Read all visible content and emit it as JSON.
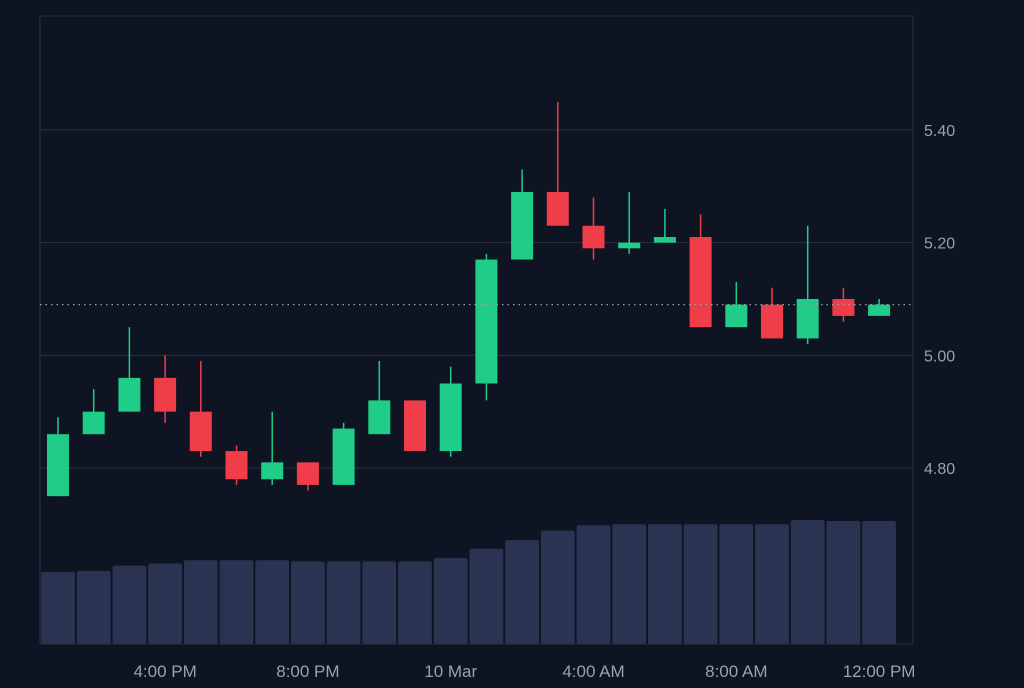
{
  "chart_data": {
    "type": "candlestick",
    "title": "",
    "xlabel": "",
    "ylabel": "",
    "ylim": [
      4.7,
      5.6
    ],
    "y_ticks": [
      4.8,
      5.0,
      5.2,
      5.4
    ],
    "y_tick_labels": [
      "4.80",
      "5.00",
      "5.20",
      "5.40"
    ],
    "x_tick_labels": [
      "4:00 PM",
      "8:00 PM",
      "10 Mar",
      "4:00 AM",
      "8:00 AM",
      "12:00 PM"
    ],
    "x_tick_candle_index": [
      3,
      7,
      11,
      15,
      19,
      23
    ],
    "last_price": 5.09,
    "grid": true,
    "colors": {
      "background": "#0e1421",
      "up": "#1fcc88",
      "down": "#ef3e4a",
      "grid": "#2a3142",
      "axis_text": "#9aa1ad",
      "volume": "#2b3353",
      "price_line": "#9aa1ad"
    },
    "candles": [
      {
        "open": 4.75,
        "high": 4.89,
        "low": 4.75,
        "close": 4.86
      },
      {
        "open": 4.86,
        "high": 4.94,
        "low": 4.86,
        "close": 4.9
      },
      {
        "open": 4.9,
        "high": 5.05,
        "low": 4.9,
        "close": 4.96
      },
      {
        "open": 4.96,
        "high": 5.0,
        "low": 4.88,
        "close": 4.9
      },
      {
        "open": 4.9,
        "high": 4.99,
        "low": 4.82,
        "close": 4.83
      },
      {
        "open": 4.83,
        "high": 4.84,
        "low": 4.77,
        "close": 4.78
      },
      {
        "open": 4.78,
        "high": 4.9,
        "low": 4.77,
        "close": 4.81
      },
      {
        "open": 4.81,
        "high": 4.81,
        "low": 4.76,
        "close": 4.77
      },
      {
        "open": 4.77,
        "high": 4.88,
        "low": 4.77,
        "close": 4.87
      },
      {
        "open": 4.86,
        "high": 4.99,
        "low": 4.86,
        "close": 4.92
      },
      {
        "open": 4.92,
        "high": 4.92,
        "low": 4.83,
        "close": 4.83
      },
      {
        "open": 4.83,
        "high": 4.98,
        "low": 4.82,
        "close": 4.95
      },
      {
        "open": 4.95,
        "high": 5.18,
        "low": 4.92,
        "close": 5.17
      },
      {
        "open": 5.17,
        "high": 5.33,
        "low": 5.17,
        "close": 5.29
      },
      {
        "open": 5.29,
        "high": 5.45,
        "low": 5.23,
        "close": 5.23
      },
      {
        "open": 5.23,
        "high": 5.28,
        "low": 5.17,
        "close": 5.19
      },
      {
        "open": 5.19,
        "high": 5.29,
        "low": 5.18,
        "close": 5.2
      },
      {
        "open": 5.2,
        "high": 5.26,
        "low": 5.2,
        "close": 5.21
      },
      {
        "open": 5.21,
        "high": 5.25,
        "low": 5.05,
        "close": 5.05
      },
      {
        "open": 5.05,
        "high": 5.13,
        "low": 5.05,
        "close": 5.09
      },
      {
        "open": 5.09,
        "high": 5.12,
        "low": 5.03,
        "close": 5.03
      },
      {
        "open": 5.03,
        "high": 5.23,
        "low": 5.02,
        "close": 5.1
      },
      {
        "open": 5.1,
        "high": 5.12,
        "low": 5.06,
        "close": 5.07
      },
      {
        "open": 5.07,
        "high": 5.1,
        "low": 5.07,
        "close": 5.09
      }
    ],
    "volumes": [
      68,
      69,
      74,
      76,
      79,
      79,
      79,
      78,
      78,
      78,
      78,
      81,
      90,
      98,
      107,
      112,
      113,
      113,
      113,
      113,
      113,
      117,
      116,
      116
    ]
  }
}
